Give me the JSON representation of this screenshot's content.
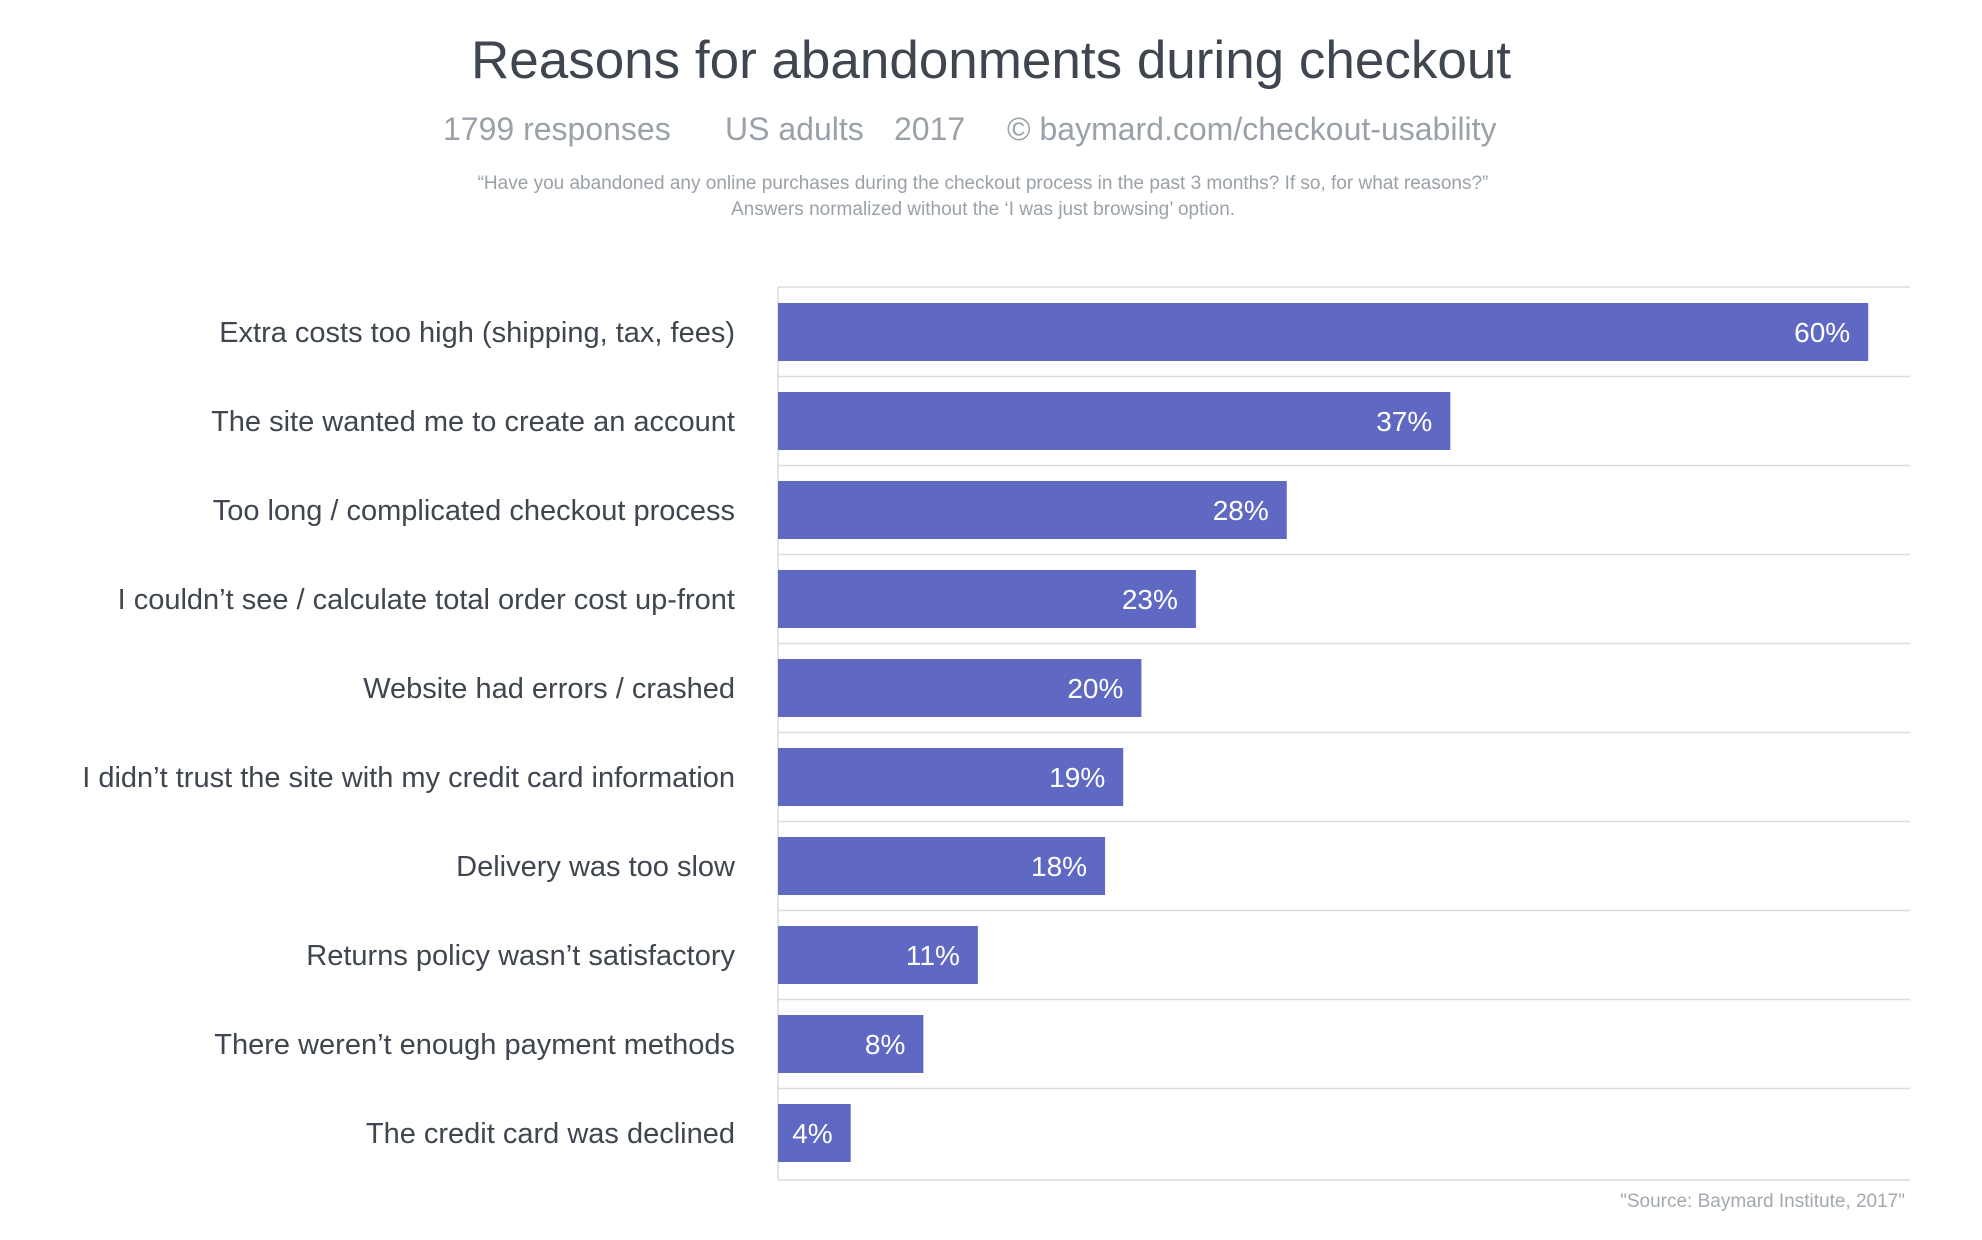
{
  "chart_data": {
    "type": "bar",
    "orientation": "horizontal",
    "title": "Reasons for abandonments during checkout",
    "subtitle": {
      "responses": "1799 responses",
      "population": "US adults",
      "year": "2017",
      "copyright": "© baymard.com/checkout-usability"
    },
    "question_line_1": "“Have you abandoned any online purchases during the checkout process in the past 3 months? If so, for what reasons?”",
    "question_line_2": "Answers normalized without the ‘I was just browsing’ option.",
    "categories": [
      "Extra costs too high (shipping, tax, fees)",
      "The site wanted me to create an account",
      "Too long / complicated checkout process",
      "I couldn’t see / calculate total order cost up-front",
      "Website had errors / crashed",
      "I didn’t trust the site with my credit card information",
      "Delivery was too slow",
      "Returns policy wasn’t satisfactory",
      "There weren’t enough payment methods",
      "The credit card was declined"
    ],
    "values": [
      60,
      37,
      28,
      23,
      20,
      19,
      18,
      11,
      8,
      4
    ],
    "value_labels": [
      "60%",
      "37%",
      "28%",
      "23%",
      "20%",
      "19%",
      "18%",
      "11%",
      "8%",
      "4%"
    ],
    "value_unit": "%",
    "xlim": [
      0,
      62.3
    ],
    "grid": true,
    "legend": "none",
    "source": "\"Source: Baymard Institute, 2017\"",
    "colors": {
      "bar": "#5f69c4",
      "grid": "#d9dcdf",
      "title": "#3f4650",
      "muted": "#9aa1a9",
      "value_text": "#ffffff"
    }
  }
}
